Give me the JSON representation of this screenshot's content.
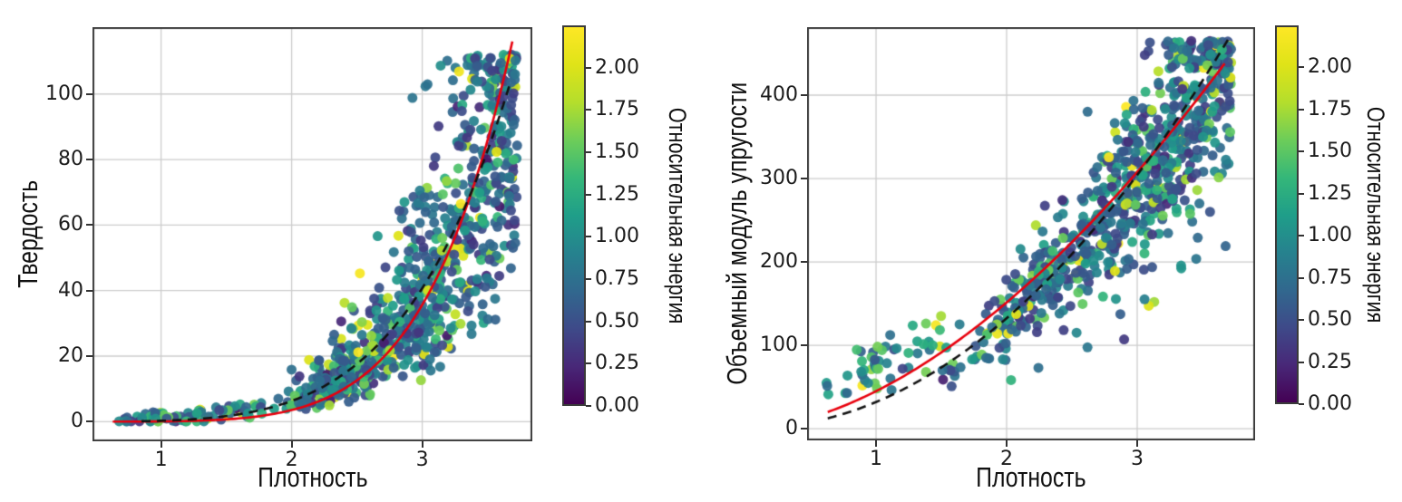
{
  "figure": {
    "background": "#ffffff",
    "description": "Two scatter plots of material properties vs density colored by relative energy"
  },
  "colormap": {
    "name": "viridis",
    "stops": [
      "#440154",
      "#482878",
      "#3e4a89",
      "#31688e",
      "#26828e",
      "#1f9e89",
      "#35b779",
      "#6dcd59",
      "#b4de2c",
      "#dfe318",
      "#fde725"
    ]
  },
  "style": {
    "red_fit_color": "#e8000d",
    "dashed_fit_color": "#111111",
    "grid_color": "#cccccc",
    "spine_color": "#3a3a3a",
    "tick_text_color": "#1c1c1c",
    "background": "#ffffff"
  },
  "chart_data": [
    {
      "id": "hardness-vs-density",
      "type": "scatter",
      "xlabel": "Плотность",
      "ylabel": "Твердость",
      "xlim": [
        0.475,
        3.843
      ],
      "ylim": [
        -6,
        120.4
      ],
      "grid": true,
      "xticks": [
        {
          "v": 1,
          "label": "1"
        },
        {
          "v": 2,
          "label": "2"
        },
        {
          "v": 3,
          "label": "3"
        }
      ],
      "yticks": [
        {
          "v": 0,
          "label": "0"
        },
        {
          "v": 20,
          "label": "20"
        },
        {
          "v": 40,
          "label": "40"
        },
        {
          "v": 60,
          "label": "60"
        },
        {
          "v": 80,
          "label": "80"
        },
        {
          "v": 100,
          "label": "100"
        }
      ],
      "colorbar": {
        "label": "Относительная энергия",
        "vmin": 0,
        "vmax": 2.25,
        "ticks": [
          {
            "v": 0,
            "label": "0.00"
          },
          {
            "v": 0.25,
            "label": "0.25"
          },
          {
            "v": 0.5,
            "label": "0.50"
          },
          {
            "v": 0.75,
            "label": "0.75"
          },
          {
            "v": 1,
            "label": "1.00"
          },
          {
            "v": 1.25,
            "label": "1.25"
          },
          {
            "v": 1.5,
            "label": "1.50"
          },
          {
            "v": 1.75,
            "label": "1.75"
          },
          {
            "v": 2,
            "label": "2.00"
          }
        ]
      },
      "fits": [
        {
          "name": "red-power-fit",
          "color": "#e8000d",
          "style": "solid",
          "a": 0.068,
          "k": 5.7,
          "x_start": 0.63,
          "x_end": 3.69
        },
        {
          "name": "black-dashed-fit",
          "color": "#111111",
          "style": "dashed",
          "a": 0.26,
          "k": 4.6,
          "x_start": 0.85,
          "x_end": 3.68
        }
      ],
      "points": {
        "count": 900,
        "seed": 11,
        "marker_radius": 5.5,
        "alpha": 0.93,
        "x_dist": {
          "low_frac": 0.09,
          "low_min": 0.62,
          "low_max": 1.95,
          "hi_base": 1.95,
          "hi_span": 1.78,
          "hi_pow": 0.72
        },
        "y_model": {
          "a": 0.205,
          "k": 4.75,
          "sigma": 0.4,
          "add_min": -1.2,
          "add_max": 2.8,
          "y_min": 0.1,
          "y_max": 112,
          "outlier_frac": 0,
          "outlier_min": 1,
          "outlier_max": 1
        },
        "c_dist": {
          "base_frac": 0.75,
          "base_mu": 0.66,
          "base_sigma": 0.21,
          "mid_frac": 0.17,
          "mid_min": 0.95,
          "mid_max": 1.6,
          "hi_frac": 0.06,
          "hi_min": 1.5,
          "hi_max": 2.05,
          "top_min": 2.05,
          "top_max": 2.25,
          "lowx_threshold": 1.7,
          "lowx_boost": 0.55
        }
      }
    },
    {
      "id": "bulk-modulus-vs-density",
      "type": "scatter",
      "xlabel": "Плотность",
      "ylabel": "Объемный модуль упругости",
      "xlim": [
        0.472,
        3.903
      ],
      "ylim": [
        -14,
        481.5
      ],
      "grid": true,
      "xticks": [
        {
          "v": 1,
          "label": "1"
        },
        {
          "v": 2,
          "label": "2"
        },
        {
          "v": 3,
          "label": "3"
        }
      ],
      "yticks": [
        {
          "v": 0,
          "label": "0"
        },
        {
          "v": 100,
          "label": "100"
        },
        {
          "v": 200,
          "label": "200"
        },
        {
          "v": 300,
          "label": "300"
        },
        {
          "v": 400,
          "label": "400"
        }
      ],
      "colorbar": {
        "label": "Относительная энергия",
        "vmin": 0,
        "vmax": 2.25,
        "ticks": [
          {
            "v": 0,
            "label": "0.00"
          },
          {
            "v": 0.25,
            "label": "0.25"
          },
          {
            "v": 0.5,
            "label": "0.50"
          },
          {
            "v": 0.75,
            "label": "0.75"
          },
          {
            "v": 1,
            "label": "1.00"
          },
          {
            "v": 1.25,
            "label": "1.25"
          },
          {
            "v": 1.5,
            "label": "1.50"
          },
          {
            "v": 1.75,
            "label": "1.75"
          },
          {
            "v": 2,
            "label": "2.00"
          }
        ]
      },
      "fits": [
        {
          "name": "red-power-fit",
          "color": "#e8000d",
          "style": "solid",
          "a": 45,
          "k": 1.75,
          "x_start": 0.63,
          "x_end": 3.67
        },
        {
          "name": "black-dashed-fit",
          "color": "#111111",
          "style": "dashed",
          "a": 32,
          "k": 2.05,
          "x_start": 0.63,
          "x_end": 3.7
        }
      ],
      "points": {
        "count": 850,
        "seed": 23,
        "marker_radius": 5.5,
        "alpha": 0.93,
        "x_dist": {
          "low_frac": 0.06,
          "low_min": 0.62,
          "low_max": 1.7,
          "hi_base": 1.7,
          "hi_span": 2.02,
          "hi_pow": 0.58
        },
        "y_model": {
          "a": 33,
          "k": 2.0,
          "sigma": 0.16,
          "add_min": 0,
          "add_max": 0,
          "y_min": 8,
          "y_max": 465,
          "lowx_threshold": 1.5,
          "lowx_add_min": 22,
          "lowx_add_max": 70,
          "outlier_frac": 0.03,
          "outlier_min": 0.45,
          "outlier_max": 0.72
        },
        "c_dist": {
          "base_frac": 0.75,
          "base_mu": 0.66,
          "base_sigma": 0.21,
          "mid_frac": 0.17,
          "mid_min": 0.95,
          "mid_max": 1.6,
          "hi_frac": 0.06,
          "hi_min": 1.5,
          "hi_max": 2.05,
          "top_min": 2.05,
          "top_max": 2.25,
          "lowx_threshold": 1.5,
          "lowx_boost": 0.8
        }
      }
    }
  ]
}
